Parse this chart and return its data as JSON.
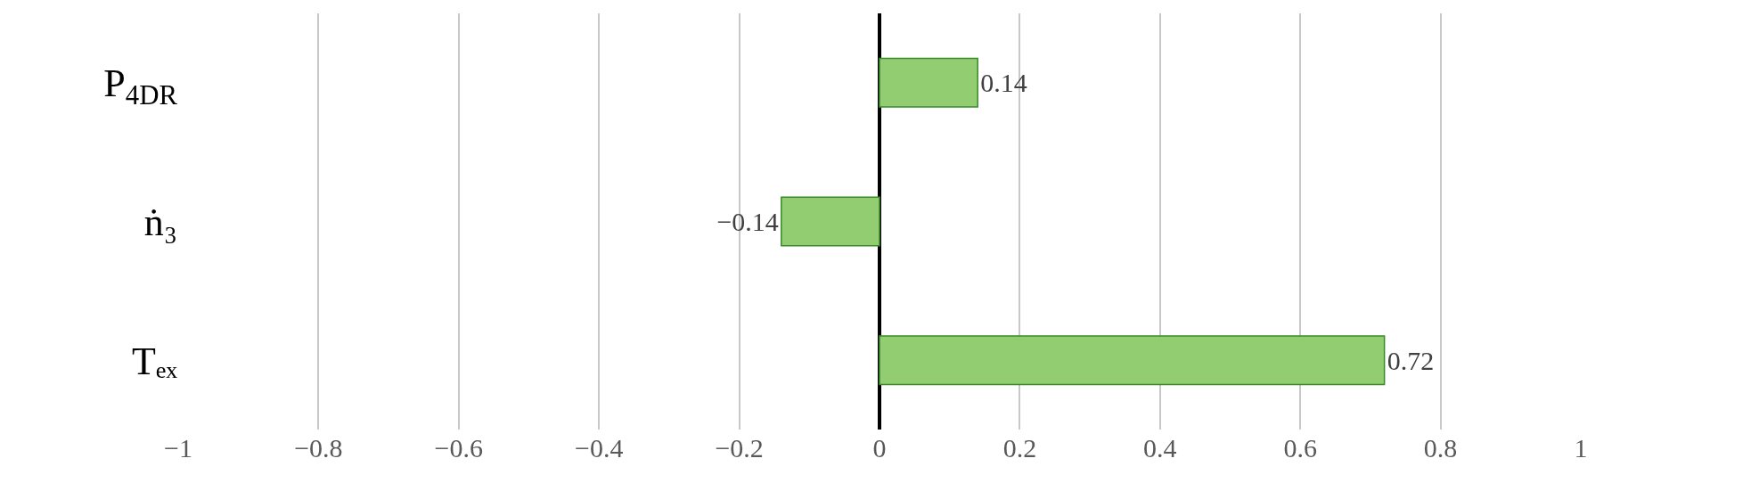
{
  "chart_data": {
    "type": "bar",
    "orientation": "horizontal",
    "categories": [
      "P$_{4DR}$",
      "ṅ₃",
      "Tₑₓ"
    ],
    "values": [
      0.14,
      -0.14,
      0.72
    ],
    "color": "#93cd72",
    "data_labels": true,
    "xlim": [
      -1,
      1
    ],
    "xticks": [
      {
        "value": -1,
        "label": "−1"
      },
      {
        "value": -0.8,
        "label": "−0.8"
      },
      {
        "value": -0.6,
        "label": "−0.6"
      },
      {
        "value": -0.4,
        "label": "−0.4"
      },
      {
        "value": -0.2,
        "label": "−0.2"
      },
      0,
      0.2,
      0.4,
      0.6,
      0.8,
      1
    ],
    "grid": "x"
  }
}
